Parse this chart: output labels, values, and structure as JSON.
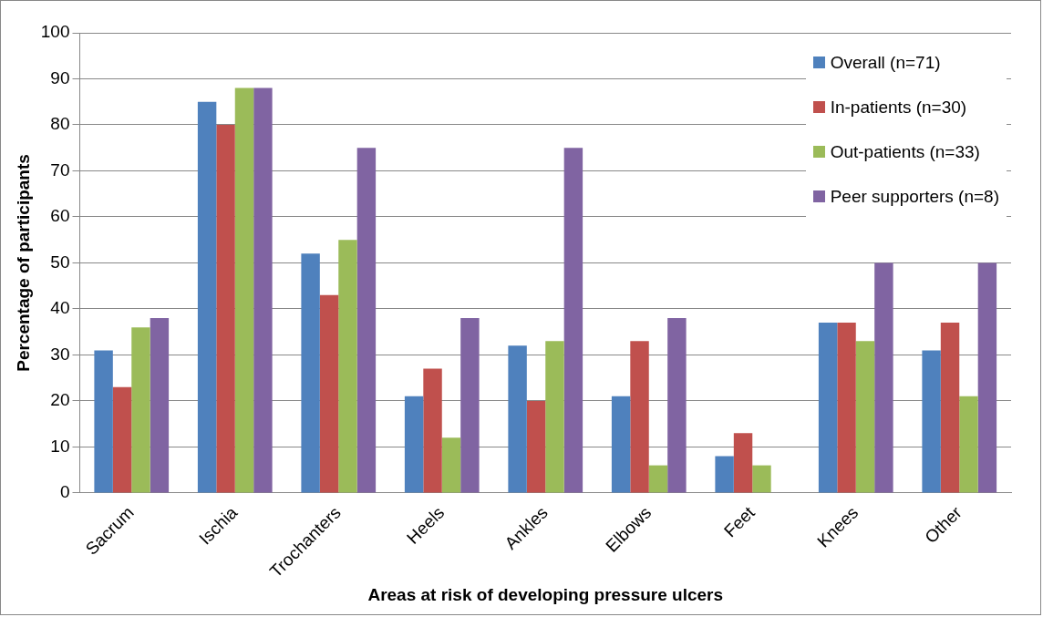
{
  "chart_data": {
    "type": "bar",
    "xlabel": "Areas at risk of developing pressure ulcers",
    "ylabel": "Percentage of participants",
    "categories": [
      "Sacrum",
      "Ischia",
      "Trochanters",
      "Heels",
      "Ankles",
      "Elbows",
      "Feet",
      "Knees",
      "Other"
    ],
    "series": [
      {
        "name": "Overall (n=71)",
        "color": "#4f81bd",
        "values": [
          31,
          85,
          52,
          21,
          32,
          21,
          8,
          37,
          31
        ]
      },
      {
        "name": "In-patients (n=30)",
        "color": "#c0504d",
        "values": [
          23,
          80,
          43,
          27,
          20,
          33,
          13,
          37,
          37
        ]
      },
      {
        "name": "Out-patients (n=33)",
        "color": "#9bbb59",
        "values": [
          36,
          88,
          55,
          12,
          33,
          6,
          6,
          33,
          21
        ]
      },
      {
        "name": "Peer supporters (n=8)",
        "color": "#8064a2",
        "values": [
          38,
          88,
          75,
          38,
          75,
          38,
          0,
          50,
          50
        ]
      }
    ],
    "ylim": [
      0,
      100
    ],
    "yticks": [
      0,
      10,
      20,
      30,
      40,
      50,
      60,
      70,
      80,
      90,
      100
    ],
    "grid": "y",
    "legend": "top right"
  }
}
